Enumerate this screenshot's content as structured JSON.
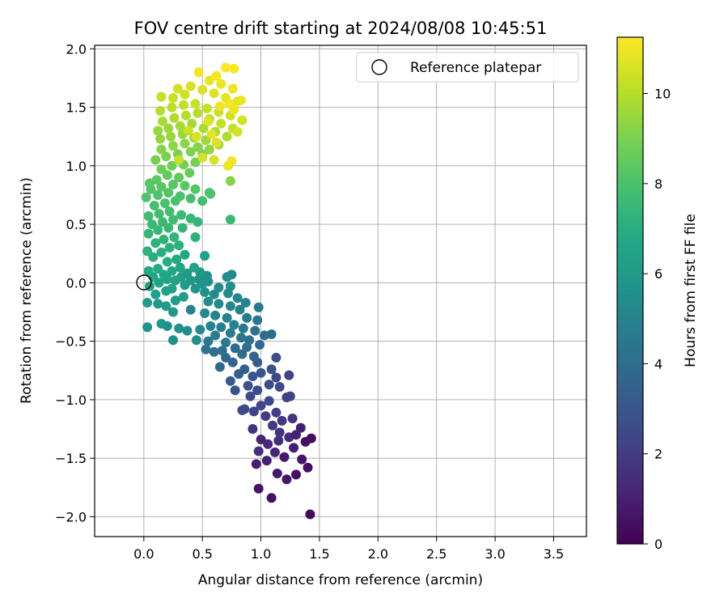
{
  "chart_data": {
    "type": "scatter",
    "title": "FOV centre drift starting at 2024/08/08 10:45:51",
    "xlabel": "Angular distance from reference (arcmin)",
    "ylabel": "Rotation from reference (arcmin)",
    "xlim": [
      -0.42,
      3.78
    ],
    "ylim": [
      -2.17,
      2.03
    ],
    "xticks": [
      "0.0",
      "0.5",
      "1.0",
      "1.5",
      "2.0",
      "2.5",
      "3.0",
      "3.5"
    ],
    "yticks": [
      "2.0",
      "1.5",
      "1.0",
      "0.5",
      "0.0",
      "−0.5",
      "−1.0",
      "−1.5",
      "−2.0"
    ],
    "grid": true,
    "legend": {
      "placement": "top-right",
      "entries": [
        "Reference platepar"
      ]
    },
    "reference_point": {
      "x": 0.0,
      "y": 0.0,
      "label": "Reference platepar",
      "marker": "open circle"
    },
    "colorbar": {
      "label": "Hours from first FF file",
      "colormap": "viridis",
      "range": [
        0,
        11.25
      ],
      "ticks": [
        "0",
        "2",
        "4",
        "6",
        "8",
        "10"
      ]
    },
    "points": [
      [
        1.42,
        -1.98,
        0.3
      ],
      [
        1.09,
        -1.84,
        0.5
      ],
      [
        0.98,
        -1.76,
        0.6
      ],
      [
        1.22,
        -1.68,
        0.7
      ],
      [
        1.3,
        -1.64,
        0.5
      ],
      [
        1.4,
        -1.58,
        0.4
      ],
      [
        1.14,
        -1.63,
        0.8
      ],
      [
        1.35,
        -1.51,
        0.6
      ],
      [
        0.96,
        -1.55,
        0.9
      ],
      [
        1.05,
        -1.52,
        1.0
      ],
      [
        1.43,
        -1.33,
        0.3
      ],
      [
        1.38,
        -1.36,
        0.5
      ],
      [
        1.2,
        -1.49,
        0.8
      ],
      [
        1.28,
        -1.41,
        1.0
      ],
      [
        1.12,
        -1.45,
        1.2
      ],
      [
        0.98,
        -1.44,
        1.4
      ],
      [
        1.0,
        -1.34,
        1.1
      ],
      [
        1.06,
        -1.38,
        1.3
      ],
      [
        1.15,
        -1.35,
        1.5
      ],
      [
        1.24,
        -1.32,
        1.4
      ],
      [
        1.34,
        -1.24,
        0.9
      ],
      [
        1.3,
        -1.3,
        1.0
      ],
      [
        1.16,
        -1.28,
        1.7
      ],
      [
        1.1,
        -1.22,
        1.9
      ],
      [
        0.93,
        -1.25,
        1.6
      ],
      [
        1.18,
        -1.18,
        1.8
      ],
      [
        1.27,
        -1.16,
        1.6
      ],
      [
        1.04,
        -1.14,
        2.0
      ],
      [
        1.13,
        -1.11,
        2.1
      ],
      [
        0.94,
        -1.1,
        2.2
      ],
      [
        1.0,
        -1.05,
        2.3
      ],
      [
        0.86,
        -1.08,
        2.4
      ],
      [
        0.84,
        -1.09,
        2.5
      ],
      [
        1.07,
        -1.01,
        2.4
      ],
      [
        1.22,
        -0.98,
        2.2
      ],
      [
        1.25,
        -0.97,
        2.1
      ],
      [
        0.91,
        -0.97,
        2.6
      ],
      [
        0.97,
        -0.92,
        2.7
      ],
      [
        1.16,
        -0.89,
        2.5
      ],
      [
        1.07,
        -0.87,
        2.6
      ],
      [
        0.78,
        -0.92,
        2.9
      ],
      [
        0.89,
        -0.88,
        2.9
      ],
      [
        1.24,
        -0.79,
        2.3
      ],
      [
        1.13,
        -0.81,
        2.4
      ],
      [
        0.93,
        -0.8,
        3.0
      ],
      [
        1.0,
        -0.77,
        3.1
      ],
      [
        1.09,
        -0.74,
        2.8
      ],
      [
        0.74,
        -0.84,
        3.2
      ],
      [
        0.81,
        -0.78,
        3.3
      ],
      [
        0.86,
        -0.74,
        3.4
      ],
      [
        1.13,
        -0.64,
        2.7
      ],
      [
        0.97,
        -0.68,
        3.2
      ],
      [
        0.94,
        -0.63,
        3.5
      ],
      [
        0.76,
        -0.68,
        3.6
      ],
      [
        0.7,
        -0.64,
        3.8
      ],
      [
        0.84,
        -0.61,
        3.9
      ],
      [
        0.65,
        -0.72,
        3.7
      ],
      [
        0.88,
        -0.55,
        4.0
      ],
      [
        0.6,
        -0.59,
        4.1
      ],
      [
        0.67,
        -0.58,
        4.2
      ],
      [
        0.78,
        -0.56,
        4.0
      ],
      [
        0.53,
        -0.57,
        4.3
      ],
      [
        0.99,
        -0.53,
        3.8
      ],
      [
        0.9,
        -0.49,
        4.1
      ],
      [
        0.55,
        -0.5,
        4.4
      ],
      [
        0.7,
        -0.51,
        4.5
      ],
      [
        0.83,
        -0.47,
        4.3
      ],
      [
        1.09,
        -0.44,
        3.9
      ],
      [
        1.03,
        -0.45,
        4.0
      ],
      [
        0.95,
        -0.41,
        4.2
      ],
      [
        0.74,
        -0.43,
        4.6
      ],
      [
        0.61,
        -0.45,
        4.7
      ],
      [
        0.85,
        -0.39,
        4.5
      ],
      [
        0.66,
        -0.38,
        4.9
      ],
      [
        0.77,
        -0.36,
        4.8
      ],
      [
        0.57,
        -0.37,
        5.0
      ],
      [
        0.97,
        -0.32,
        4.4
      ],
      [
        0.88,
        -0.3,
        4.6
      ],
      [
        0.71,
        -0.3,
        5.0
      ],
      [
        0.61,
        -0.28,
        5.1
      ],
      [
        0.4,
        -0.23,
        4.8
      ],
      [
        0.52,
        -0.26,
        5.2
      ],
      [
        0.98,
        -0.21,
        4.5
      ],
      [
        0.82,
        -0.23,
        4.9
      ],
      [
        0.74,
        -0.2,
        5.2
      ],
      [
        0.64,
        -0.18,
        5.3
      ],
      [
        0.55,
        -0.16,
        5.4
      ],
      [
        0.87,
        -0.17,
        5.0
      ],
      [
        0.8,
        -0.13,
        5.1
      ],
      [
        0.72,
        -0.09,
        5.3
      ],
      [
        0.6,
        -0.1,
        5.5
      ],
      [
        0.52,
        -0.08,
        5.6
      ],
      [
        0.64,
        -0.04,
        5.5
      ],
      [
        0.74,
        -0.03,
        5.4
      ],
      [
        0.55,
        0.01,
        5.6
      ],
      [
        0.75,
        0.07,
        5.3
      ],
      [
        0.71,
        0.05,
        5.4
      ],
      [
        0.47,
        0.03,
        5.8
      ],
      [
        0.54,
        0.06,
        5.7
      ],
      [
        0.5,
        -0.01,
        5.8
      ],
      [
        0.44,
        -0.05,
        5.9
      ],
      [
        0.4,
        0.02,
        6.0
      ],
      [
        0.35,
        -0.02,
        6.1
      ],
      [
        0.32,
        0.05,
        6.2
      ],
      [
        0.48,
        0.09,
        6.0
      ],
      [
        0.37,
        0.08,
        6.1
      ],
      [
        0.25,
        -0.49,
        5.6
      ],
      [
        0.2,
        -0.37,
        5.6
      ],
      [
        0.3,
        -0.39,
        5.7
      ],
      [
        0.37,
        -0.41,
        5.5
      ],
      [
        0.45,
        -0.49,
        5.4
      ],
      [
        0.48,
        -0.4,
        5.3
      ],
      [
        0.15,
        -0.35,
        5.8
      ],
      [
        0.03,
        -0.38,
        5.7
      ],
      [
        0.25,
        -0.25,
        6.0
      ],
      [
        0.12,
        -0.18,
        6.0
      ],
      [
        0.03,
        -0.17,
        6.1
      ],
      [
        0.19,
        -0.2,
        6.1
      ],
      [
        0.27,
        -0.15,
        6.2
      ],
      [
        0.34,
        -0.12,
        6.2
      ],
      [
        0.1,
        -0.1,
        6.3
      ],
      [
        0.19,
        -0.07,
        6.4
      ],
      [
        0.24,
        -0.05,
        6.4
      ],
      [
        0.05,
        -0.03,
        6.4
      ],
      [
        0.13,
        0.0,
        6.5
      ],
      [
        0.2,
        0.03,
        6.5
      ],
      [
        0.27,
        0.02,
        6.4
      ],
      [
        0.08,
        0.05,
        6.6
      ],
      [
        0.17,
        0.07,
        6.6
      ],
      [
        0.24,
        0.1,
        6.7
      ],
      [
        0.04,
        0.1,
        6.8
      ],
      [
        0.12,
        0.12,
        6.8
      ],
      [
        0.31,
        0.13,
        6.5
      ],
      [
        0.43,
        0.13,
        6.4
      ],
      [
        0.52,
        0.23,
        6.3
      ],
      [
        0.2,
        0.18,
        6.9
      ],
      [
        0.28,
        0.2,
        6.8
      ],
      [
        0.35,
        0.24,
        6.7
      ],
      [
        0.08,
        0.22,
        7.0
      ],
      [
        0.15,
        0.26,
        7.0
      ],
      [
        0.03,
        0.27,
        7.1
      ],
      [
        0.22,
        0.3,
        7.2
      ],
      [
        0.3,
        0.32,
        7.1
      ],
      [
        0.1,
        0.34,
        7.2
      ],
      [
        0.17,
        0.37,
        7.3
      ],
      [
        0.26,
        0.39,
        7.3
      ],
      [
        0.04,
        0.42,
        7.4
      ],
      [
        0.12,
        0.45,
        7.5
      ],
      [
        0.21,
        0.47,
        7.5
      ],
      [
        0.33,
        0.47,
        7.4
      ],
      [
        0.44,
        0.39,
        7.2
      ],
      [
        0.07,
        0.5,
        7.6
      ],
      [
        0.16,
        0.52,
        7.6
      ],
      [
        0.25,
        0.54,
        7.7
      ],
      [
        0.04,
        0.57,
        7.7
      ],
      [
        0.13,
        0.59,
        7.8
      ],
      [
        0.22,
        0.61,
        7.8
      ],
      [
        0.32,
        0.58,
        7.6
      ],
      [
        0.4,
        0.55,
        7.5
      ],
      [
        0.46,
        0.52,
        7.4
      ],
      [
        0.09,
        0.66,
        7.9
      ],
      [
        0.18,
        0.68,
        8.0
      ],
      [
        0.27,
        0.7,
        8.0
      ],
      [
        0.02,
        0.73,
        8.1
      ],
      [
        0.12,
        0.75,
        8.1
      ],
      [
        0.21,
        0.77,
        8.2
      ],
      [
        0.31,
        0.74,
        8.0
      ],
      [
        0.4,
        0.72,
        7.9
      ],
      [
        0.5,
        0.7,
        7.8
      ],
      [
        0.06,
        0.8,
        8.2
      ],
      [
        0.15,
        0.82,
        8.3
      ],
      [
        0.25,
        0.84,
        8.3
      ],
      [
        0.35,
        0.83,
        8.3
      ],
      [
        0.44,
        0.8,
        8.2
      ],
      [
        0.56,
        0.77,
        8.0
      ],
      [
        0.74,
        0.54,
        7.6
      ],
      [
        0.05,
        0.85,
        8.3
      ],
      [
        0.11,
        0.88,
        8.4
      ],
      [
        0.2,
        0.92,
        8.5
      ],
      [
        0.3,
        0.9,
        8.5
      ],
      [
        0.39,
        0.94,
        8.6
      ],
      [
        0.15,
        0.97,
        8.7
      ],
      [
        0.24,
        1.0,
        8.8
      ],
      [
        0.34,
        1.01,
        8.8
      ],
      [
        0.44,
        1.03,
        8.9
      ],
      [
        0.57,
        0.76,
        8.1
      ],
      [
        0.1,
        1.05,
        8.9
      ],
      [
        0.19,
        1.08,
        9.0
      ],
      [
        0.29,
        1.1,
        9.0
      ],
      [
        0.4,
        1.12,
        9.1
      ],
      [
        0.5,
        1.1,
        9.0
      ],
      [
        0.74,
        0.87,
        9.2
      ],
      [
        0.15,
        1.14,
        9.2
      ],
      [
        0.25,
        1.17,
        9.3
      ],
      [
        0.35,
        1.19,
        9.3
      ],
      [
        0.46,
        1.16,
        9.2
      ],
      [
        0.56,
        1.14,
        9.4
      ],
      [
        0.14,
        1.23,
        9.4
      ],
      [
        0.23,
        1.25,
        9.5
      ],
      [
        0.33,
        1.27,
        9.5
      ],
      [
        0.43,
        1.24,
        9.6
      ],
      [
        0.53,
        1.22,
        9.6
      ],
      [
        0.64,
        1.18,
        9.7
      ],
      [
        0.12,
        1.3,
        9.5
      ],
      [
        0.21,
        1.32,
        9.6
      ],
      [
        0.31,
        1.34,
        9.7
      ],
      [
        0.41,
        1.36,
        9.7
      ],
      [
        0.51,
        1.32,
        9.8
      ],
      [
        0.61,
        1.29,
        9.8
      ],
      [
        0.71,
        1.25,
        9.9
      ],
      [
        0.16,
        1.38,
        9.8
      ],
      [
        0.26,
        1.41,
        9.9
      ],
      [
        0.36,
        1.43,
        10.0
      ],
      [
        0.46,
        1.45,
        10.0
      ],
      [
        0.56,
        1.4,
        10.1
      ],
      [
        0.66,
        1.36,
        10.2
      ],
      [
        0.76,
        1.32,
        10.2
      ],
      [
        0.14,
        1.47,
        10.0
      ],
      [
        0.24,
        1.5,
        10.1
      ],
      [
        0.34,
        1.52,
        10.2
      ],
      [
        0.44,
        1.53,
        10.3
      ],
      [
        0.54,
        1.49,
        10.3
      ],
      [
        0.64,
        1.46,
        10.4
      ],
      [
        0.74,
        1.43,
        10.4
      ],
      [
        0.84,
        1.39,
        10.5
      ],
      [
        0.8,
        1.29,
        10.5
      ],
      [
        0.15,
        1.59,
        10.2
      ],
      [
        0.25,
        1.58,
        10.3
      ],
      [
        0.35,
        1.61,
        10.4
      ],
      [
        0.29,
        1.66,
        10.5
      ],
      [
        0.4,
        1.68,
        10.6
      ],
      [
        0.5,
        1.65,
        10.6
      ],
      [
        0.6,
        1.62,
        10.7
      ],
      [
        0.7,
        1.58,
        10.8
      ],
      [
        0.8,
        1.55,
        10.8
      ],
      [
        0.56,
        1.73,
        10.9
      ],
      [
        0.66,
        1.7,
        10.9
      ],
      [
        0.76,
        1.66,
        11.0
      ],
      [
        0.47,
        1.8,
        11.0
      ],
      [
        0.62,
        1.77,
        11.1
      ],
      [
        0.7,
        1.84,
        11.2
      ],
      [
        0.77,
        1.83,
        11.2
      ],
      [
        0.73,
        1.53,
        11.1
      ],
      [
        0.77,
        1.48,
        11.0
      ],
      [
        0.83,
        1.56,
        10.9
      ],
      [
        0.55,
        1.38,
        10.7
      ],
      [
        0.65,
        1.51,
        11.0
      ],
      [
        0.72,
        1.0,
        10.9
      ],
      [
        0.75,
        1.04,
        11.0
      ],
      [
        0.58,
        1.27,
        10.8
      ],
      [
        0.45,
        1.25,
        10.6
      ],
      [
        0.38,
        1.3,
        10.4
      ],
      [
        0.5,
        1.07,
        10.5
      ],
      [
        0.6,
        1.05,
        10.6
      ],
      [
        0.3,
        1.05,
        10.2
      ],
      [
        0.62,
        1.2,
        10.7
      ]
    ]
  }
}
